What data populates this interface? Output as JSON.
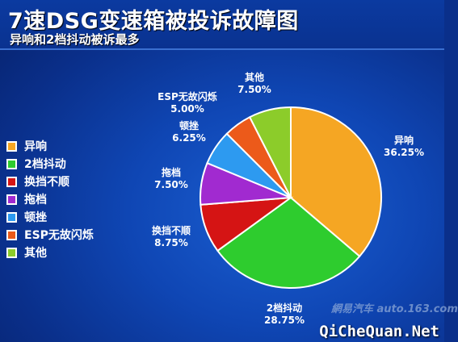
{
  "title": "7速DSG变速箱被投诉故障图",
  "subtitle": "异响和2档抖动被诉最多",
  "chart_data": {
    "type": "pie",
    "title": "7速DSG变速箱被投诉故障图",
    "subtitle": "异响和2档抖动被诉最多",
    "legend_position": "left",
    "slices": [
      {
        "label": "异响",
        "value": 36.25,
        "value_label": "36.25%",
        "color": "#f5a623"
      },
      {
        "label": "2档抖动",
        "value": 28.75,
        "value_label": "28.75%",
        "color": "#2ecc2e"
      },
      {
        "label": "换挡不顺",
        "value": 8.75,
        "value_label": "8.75%",
        "color": "#d51414"
      },
      {
        "label": "拖档",
        "value": 7.5,
        "value_label": "7.50%",
        "color": "#a12ad0"
      },
      {
        "label": "顿挫",
        "value": 6.25,
        "value_label": "6.25%",
        "color": "#2d9af0"
      },
      {
        "label": "ESP无故闪烁",
        "value": 5.0,
        "value_label": "5.00%",
        "color": "#ec5a1a"
      },
      {
        "label": "其他",
        "value": 7.5,
        "value_label": "7.50%",
        "color": "#8ccc2a"
      }
    ]
  },
  "watermark": "網易汽车 auto.163.com",
  "footer": "QiCheQuan.Net"
}
